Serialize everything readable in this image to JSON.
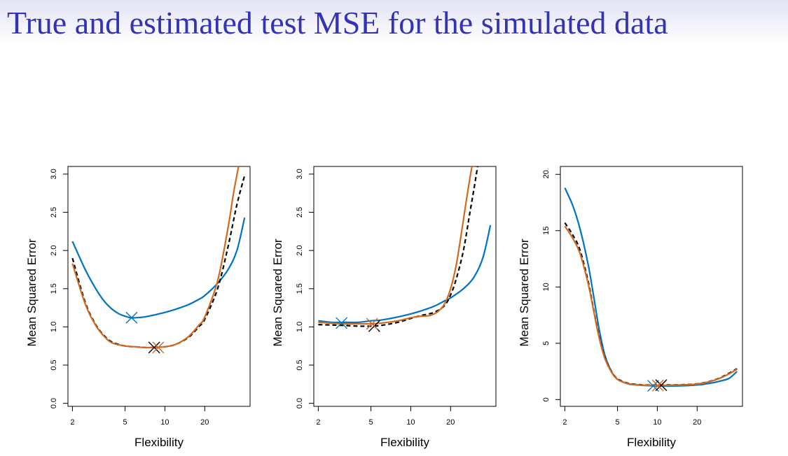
{
  "slide": {
    "title": "True and estimated test MSE for the simulated data"
  },
  "colors": {
    "title": "#3333b3",
    "true_mse": "#0072c2",
    "loocv": "#000000",
    "kfold_cv": "#d2691e"
  },
  "chart_data": [
    {
      "type": "line",
      "xlabel": "Flexibility",
      "ylabel": "Mean Squared Error",
      "x_scale": "log",
      "xlim": [
        1.85,
        44
      ],
      "ylim": [
        -0.04,
        3.1
      ],
      "xticks": [
        2,
        5,
        10,
        20
      ],
      "xtick_labels": [
        "2",
        "5",
        "10",
        "20"
      ],
      "yticks": [
        0,
        0.5,
        1,
        1.5,
        2,
        2.5,
        3
      ],
      "ytick_labels": [
        "0.0",
        "0.5",
        "1.0",
        "1.5",
        "2.0",
        "2.5",
        "3.0"
      ],
      "grid": false,
      "series": [
        {
          "color": "#0072c2",
          "style": "solid",
          "x": [
            2,
            2.5,
            3,
            3.5,
            4,
            4.5,
            5,
            5.5,
            6,
            7,
            8,
            10,
            12,
            15,
            18,
            20,
            25,
            30,
            35,
            40
          ],
          "y": [
            2.12,
            1.75,
            1.5,
            1.33,
            1.23,
            1.17,
            1.14,
            1.12,
            1.12,
            1.13,
            1.15,
            1.19,
            1.23,
            1.29,
            1.36,
            1.41,
            1.57,
            1.75,
            2.0,
            2.43
          ],
          "min_marker": {
            "x": 5.6,
            "y": 1.12
          }
        },
        {
          "color": "#000000",
          "style": "dashed",
          "x": [
            2,
            2.5,
            3,
            3.5,
            4,
            5,
            6,
            7,
            8,
            10,
            12,
            15,
            18,
            20,
            25,
            30,
            35,
            40
          ],
          "y": [
            1.9,
            1.32,
            1.03,
            0.88,
            0.8,
            0.75,
            0.74,
            0.73,
            0.73,
            0.74,
            0.77,
            0.86,
            1.0,
            1.1,
            1.5,
            2.05,
            2.6,
            2.98
          ],
          "min_marker": {
            "x": 8.3,
            "y": 0.73
          }
        },
        {
          "color": "#d2691e",
          "style": "solid",
          "x": [
            2,
            2.5,
            3,
            3.5,
            4,
            5,
            6,
            7,
            8,
            10,
            12,
            15,
            18,
            20,
            25,
            30,
            33,
            36
          ],
          "y": [
            1.83,
            1.3,
            1.02,
            0.87,
            0.79,
            0.75,
            0.74,
            0.73,
            0.73,
            0.74,
            0.77,
            0.87,
            1.02,
            1.13,
            1.6,
            2.3,
            2.75,
            3.1
          ],
          "min_marker": {
            "x": 8.9,
            "y": 0.73
          }
        }
      ]
    },
    {
      "type": "line",
      "xlabel": "Flexibility",
      "ylabel": "Mean Squared Error",
      "x_scale": "log",
      "xlim": [
        1.85,
        44
      ],
      "ylim": [
        -0.04,
        3.1
      ],
      "xticks": [
        2,
        5,
        10,
        20
      ],
      "xtick_labels": [
        "2",
        "5",
        "10",
        "20"
      ],
      "yticks": [
        0,
        0.5,
        1,
        1.5,
        2,
        2.5,
        3
      ],
      "ytick_labels": [
        "0.0",
        "0.5",
        "1.0",
        "1.5",
        "2.0",
        "2.5",
        "3.0"
      ],
      "grid": false,
      "series": [
        {
          "color": "#0072c2",
          "style": "solid",
          "x": [
            2,
            2.5,
            3,
            4,
            5,
            6,
            8,
            10,
            12,
            15,
            18,
            20,
            25,
            30,
            35,
            40
          ],
          "y": [
            1.08,
            1.06,
            1.06,
            1.06,
            1.08,
            1.09,
            1.13,
            1.17,
            1.21,
            1.27,
            1.34,
            1.38,
            1.5,
            1.65,
            1.9,
            2.33
          ],
          "min_marker": {
            "x": 3.0,
            "y": 1.05
          }
        },
        {
          "color": "#000000",
          "style": "dashed",
          "x": [
            2,
            3,
            4,
            5,
            6,
            8,
            10,
            12,
            15,
            18,
            20,
            22,
            25,
            28,
            30,
            32
          ],
          "y": [
            1.03,
            1.02,
            1.01,
            1.01,
            1.02,
            1.06,
            1.11,
            1.15,
            1.19,
            1.28,
            1.42,
            1.62,
            2.0,
            2.5,
            2.8,
            3.1
          ],
          "min_marker": {
            "x": 5.3,
            "y": 1.01
          }
        },
        {
          "color": "#d2691e",
          "style": "solid",
          "x": [
            2,
            3,
            4,
            5,
            6,
            8,
            10,
            12,
            14,
            16,
            18,
            20,
            22,
            24,
            26,
            28,
            29
          ],
          "y": [
            1.06,
            1.04,
            1.04,
            1.04,
            1.05,
            1.08,
            1.12,
            1.14,
            1.15,
            1.2,
            1.3,
            1.5,
            1.8,
            2.2,
            2.6,
            2.95,
            3.1
          ],
          "min_marker": {
            "x": 5.1,
            "y": 1.04
          }
        }
      ]
    },
    {
      "type": "line",
      "xlabel": "Flexibility",
      "ylabel": "Mean Squared Error",
      "x_scale": "log",
      "xlim": [
        1.85,
        44
      ],
      "ylim": [
        -0.6,
        20.7
      ],
      "xticks": [
        2,
        5,
        10,
        20
      ],
      "xtick_labels": [
        "2",
        "5",
        "10",
        "20"
      ],
      "yticks": [
        0,
        5,
        10,
        15,
        20
      ],
      "ytick_labels": [
        "0",
        "5",
        "10",
        "15",
        "20"
      ],
      "grid": false,
      "series": [
        {
          "color": "#0072c2",
          "style": "solid",
          "x": [
            2,
            2.3,
            2.6,
            3,
            3.3,
            3.6,
            4,
            4.5,
            5,
            6,
            7,
            8,
            10,
            12,
            15,
            20,
            25,
            30,
            35,
            40
          ],
          "y": [
            18.8,
            17.2,
            15.2,
            12.0,
            9.2,
            6.5,
            4.0,
            2.5,
            1.8,
            1.4,
            1.3,
            1.25,
            1.2,
            1.2,
            1.22,
            1.3,
            1.45,
            1.65,
            1.9,
            2.5
          ],
          "min_marker": {
            "x": 9.3,
            "y": 1.22
          }
        },
        {
          "color": "#000000",
          "style": "dashed",
          "x": [
            2,
            2.3,
            2.6,
            3,
            3.3,
            3.6,
            4,
            4.5,
            5,
            6,
            7,
            8,
            10,
            12,
            15,
            20,
            25,
            30,
            35,
            40
          ],
          "y": [
            15.7,
            14.6,
            13.3,
            10.5,
            8.0,
            5.8,
            3.8,
            2.5,
            1.85,
            1.45,
            1.35,
            1.3,
            1.28,
            1.3,
            1.32,
            1.4,
            1.62,
            1.95,
            2.35,
            2.75
          ],
          "min_marker": {
            "x": 10.7,
            "y": 1.28
          }
        },
        {
          "color": "#d2691e",
          "style": "solid",
          "x": [
            2,
            2.3,
            2.6,
            3,
            3.3,
            3.6,
            4,
            4.5,
            5,
            6,
            7,
            8,
            10,
            12,
            15,
            20,
            25,
            30,
            35,
            40
          ],
          "y": [
            15.4,
            14.3,
            13.0,
            10.3,
            7.9,
            5.7,
            3.7,
            2.45,
            1.8,
            1.42,
            1.32,
            1.28,
            1.25,
            1.27,
            1.3,
            1.38,
            1.6,
            1.92,
            2.3,
            2.7
          ],
          "min_marker": {
            "x": 10.1,
            "y": 1.25
          }
        }
      ]
    }
  ]
}
